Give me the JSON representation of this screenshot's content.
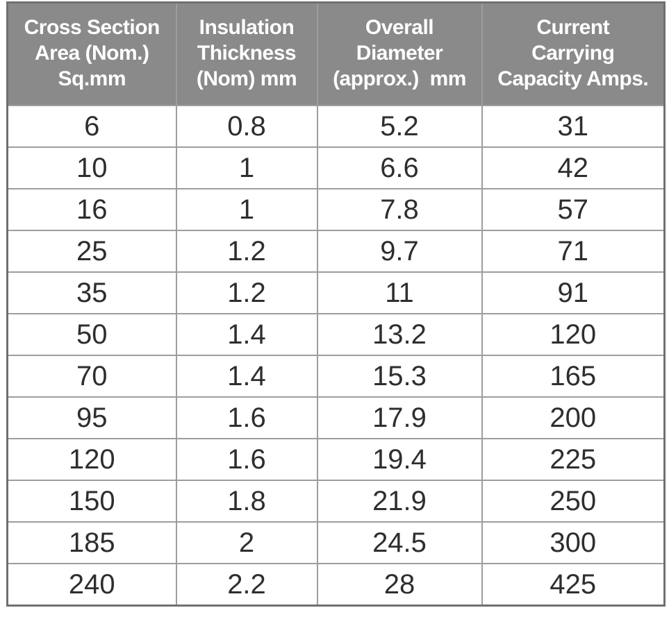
{
  "table": {
    "headers": [
      {
        "id": "cross-section-area",
        "text": "Cross Section\nArea (Nom.)\nSq.mm"
      },
      {
        "id": "insulation-thickness",
        "text": "Insulation\nThickness\n(Nom) mm"
      },
      {
        "id": "overall-diameter",
        "text": "Overall\nDiameter\n(approx.)  mm"
      },
      {
        "id": "current-capacity",
        "text": "Current\nCarrying\nCapacity Amps."
      }
    ],
    "rows": [
      [
        "6",
        "0.8",
        "5.2",
        "31"
      ],
      [
        "10",
        "1",
        "6.6",
        "42"
      ],
      [
        "16",
        "1",
        "7.8",
        "57"
      ],
      [
        "25",
        "1.2",
        "9.7",
        "71"
      ],
      [
        "35",
        "1.2",
        "11",
        "91"
      ],
      [
        "50",
        "1.4",
        "13.2",
        "120"
      ],
      [
        "70",
        "1.4",
        "15.3",
        "165"
      ],
      [
        "95",
        "1.6",
        "17.9",
        "200"
      ],
      [
        "120",
        "1.6",
        "19.4",
        "225"
      ],
      [
        "150",
        "1.8",
        "21.9",
        "250"
      ],
      [
        "185",
        "2",
        "24.5",
        "300"
      ],
      [
        "240",
        "2.2",
        "28",
        "425"
      ]
    ]
  },
  "colors": {
    "header_bg": "#8a8a8a",
    "header_text": "#ffffff",
    "cell_text": "#2e2e2e",
    "inner_border": "#9d9d9d",
    "outer_border": "#707070",
    "cell_bg": "#ffffff"
  },
  "chart_data": {
    "type": "table",
    "columns": [
      "Cross Section Area (Nom.) Sq.mm",
      "Insulation Thickness (Nom) mm",
      "Overall Diameter (approx.) mm",
      "Current Carrying Capacity Amps."
    ],
    "rows": [
      [
        6,
        0.8,
        5.2,
        31
      ],
      [
        10,
        1,
        6.6,
        42
      ],
      [
        16,
        1,
        7.8,
        57
      ],
      [
        25,
        1.2,
        9.7,
        71
      ],
      [
        35,
        1.2,
        11,
        91
      ],
      [
        50,
        1.4,
        13.2,
        120
      ],
      [
        70,
        1.4,
        15.3,
        165
      ],
      [
        95,
        1.6,
        17.9,
        200
      ],
      [
        120,
        1.6,
        19.4,
        225
      ],
      [
        150,
        1.8,
        21.9,
        250
      ],
      [
        185,
        2,
        24.5,
        300
      ],
      [
        240,
        2.2,
        28,
        425
      ]
    ]
  }
}
